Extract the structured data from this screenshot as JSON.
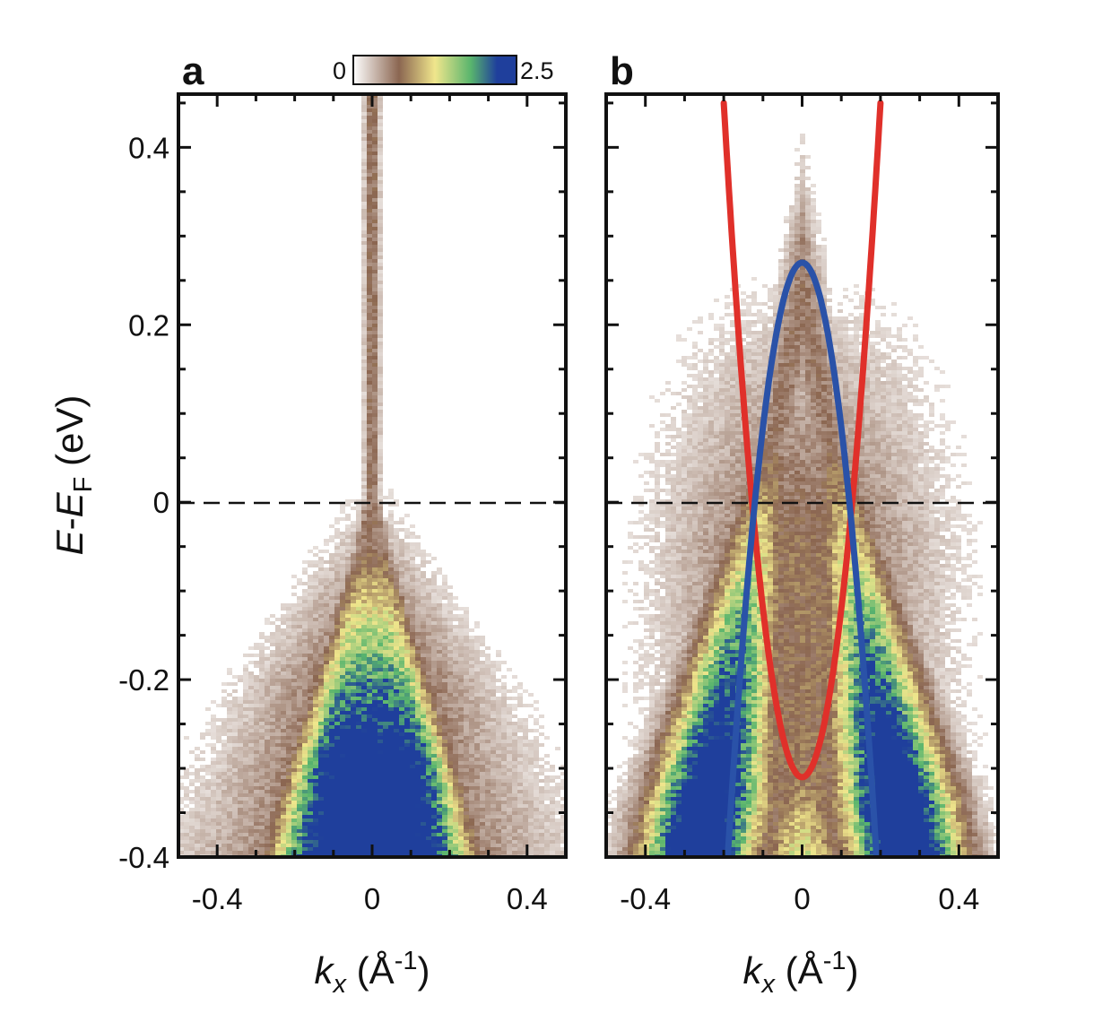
{
  "chart_data": [
    {
      "panel": "a",
      "type": "heatmap",
      "xlabel": {
        "italic": "k",
        "sub": "x",
        "rest": " (Å",
        "sup": "-1",
        "close": ")"
      },
      "ylabel": {
        "italic_e": "E",
        "dash": "-",
        "italic_e2": "E",
        "sub": "F",
        "rest": " (eV)"
      },
      "xlim": [
        -0.5,
        0.5
      ],
      "ylim": [
        -0.4,
        0.46
      ],
      "xticks": [
        -0.4,
        0,
        0.4
      ],
      "xtick_labels": [
        "-0.4",
        "0",
        "0.4"
      ],
      "yticks": [
        -0.4,
        -0.2,
        0,
        0.2,
        0.4
      ],
      "ytick_labels": [
        "-0.4",
        "-0.2",
        "0",
        "0.2",
        "0.4"
      ],
      "colorbar": {
        "min_label": "0",
        "max_label": "2.5",
        "range": [
          0,
          2.5
        ]
      },
      "fermi_level_line": 0,
      "intensity_model": {
        "band": "hole-like",
        "apex_energy": -0.05,
        "width_at_bottom": 0.25
      }
    },
    {
      "panel": "b",
      "type": "heatmap",
      "xlabel": {
        "italic": "k",
        "sub": "x",
        "rest": " (Å",
        "sup": "-1",
        "close": ")"
      },
      "xlim": [
        -0.5,
        0.5
      ],
      "ylim": [
        -0.4,
        0.46
      ],
      "xticks": [
        -0.4,
        0,
        0.4
      ],
      "xtick_labels": [
        "-0.4",
        "0",
        "0.4"
      ],
      "yticks": [
        -0.4,
        -0.2,
        0,
        0.2,
        0.4
      ],
      "fermi_level_line": 0,
      "intensity_model": {
        "band": "double-branch",
        "crossing_k": 0.1
      },
      "series": [
        {
          "color": "#e0302a",
          "x": [
            -0.2,
            -0.16,
            -0.12,
            -0.08,
            -0.04,
            0,
            0.04,
            0.08,
            0.12,
            0.16,
            0.2
          ],
          "y": [
            0.45,
            0.176,
            -0.036,
            -0.188,
            -0.279,
            -0.31,
            -0.279,
            -0.188,
            -0.036,
            0.176,
            0.45
          ]
        },
        {
          "color": "#2a52a8",
          "x": [
            -0.19,
            -0.16,
            -0.12,
            -0.08,
            -0.04,
            0,
            0.04,
            0.08,
            0.12,
            0.16,
            0.19
          ],
          "y": [
            -0.4,
            -0.219,
            -0.008,
            0.143,
            0.233,
            0.27,
            0.233,
            0.143,
            -0.008,
            -0.219,
            -0.4
          ]
        }
      ]
    }
  ],
  "colors": {
    "colormap": [
      "#ffffff",
      "#8b6651",
      "#f0e68c",
      "#59b56d",
      "#1f3f9c"
    ],
    "dashed_line": "#111111",
    "axis": "#111111"
  }
}
